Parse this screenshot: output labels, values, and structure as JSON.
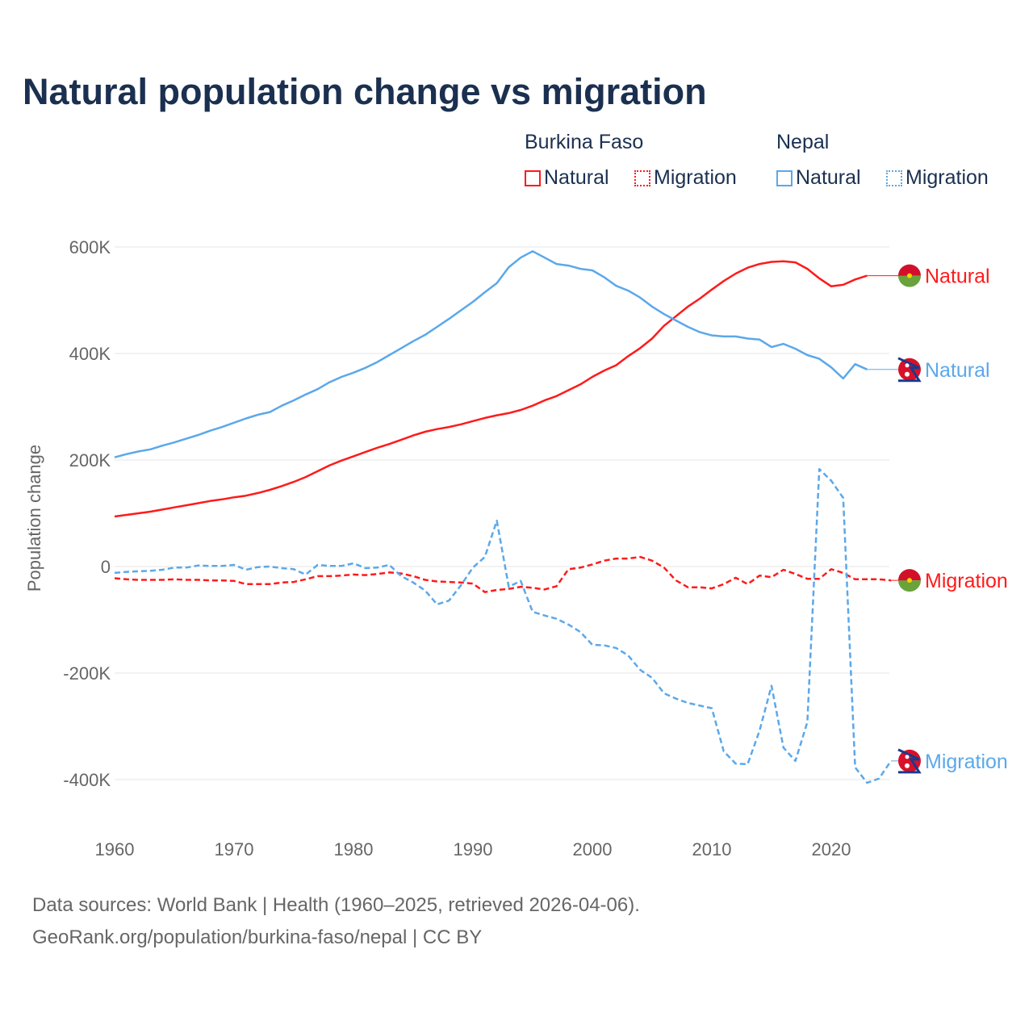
{
  "title": "Natural population change vs migration",
  "legend": {
    "groups": [
      {
        "name": "Burkina Faso",
        "items": [
          {
            "label": "Natural",
            "style": "solid"
          },
          {
            "label": "Migration",
            "style": "dotted"
          }
        ],
        "color": "#ff1a1a"
      },
      {
        "name": "Nepal",
        "items": [
          {
            "label": "Natural",
            "style": "solid"
          },
          {
            "label": "Migration",
            "style": "dotted"
          }
        ],
        "color": "#5ba8ea"
      }
    ]
  },
  "footer": {
    "line1": "Data sources: World Bank | Health (1960–2025, retrieved 2026-04-06).",
    "line2": "GeoRank.org/population/burkina-faso/nepal | CC BY"
  },
  "chart_data": {
    "type": "line",
    "title": "Natural population change vs migration",
    "xlabel": "",
    "ylabel": "Population change",
    "xlim": [
      1960,
      2025
    ],
    "ylim": [
      -500000,
      620000
    ],
    "x_ticks": [
      1960,
      1970,
      1980,
      1990,
      2000,
      2010,
      2020
    ],
    "x_tick_labels": [
      "1960",
      "1970",
      "1980",
      "1990",
      "2000",
      "2010",
      "2020"
    ],
    "y_ticks": [
      600,
      400,
      200,
      0,
      -200,
      -400
    ],
    "y_tick_labels": [
      "600K",
      "400K",
      "200K",
      "0",
      "-200K",
      "-400K"
    ],
    "units": "thousands",
    "grid": true,
    "series": [
      {
        "name": "Burkina Faso Natural",
        "end_label": "Natural",
        "country": "burkina-faso",
        "color": "#ff1a1a",
        "dash": "solid",
        "start_year": 1960,
        "values": [
          94,
          97,
          100,
          103,
          107,
          111,
          115,
          119,
          123,
          126,
          130,
          133,
          138,
          144,
          151,
          159,
          168,
          179,
          190,
          199,
          207,
          215,
          223,
          230,
          238,
          246,
          253,
          258,
          262,
          267,
          273,
          279,
          284,
          288,
          294,
          302,
          312,
          320,
          331,
          342,
          356,
          368,
          378,
          395,
          410,
          428,
          452,
          470,
          488,
          503,
          520,
          536,
          550,
          561,
          568,
          572,
          573,
          571,
          559,
          541,
          526,
          529,
          539,
          546
        ]
      },
      {
        "name": "Burkina Faso Migration",
        "end_label": "Migration",
        "country": "burkina-faso",
        "color": "#ff1a1a",
        "dash": "dashed",
        "start_year": 1960,
        "values": [
          -22,
          -24,
          -25,
          -25,
          -25,
          -24,
          -25,
          -25,
          -26,
          -26,
          -27,
          -33,
          -33,
          -33,
          -30,
          -29,
          -24,
          -18,
          -18,
          -17,
          -15,
          -16,
          -14,
          -11,
          -13,
          -18,
          -25,
          -28,
          -29,
          -30,
          -32,
          -48,
          -44,
          -42,
          -38,
          -40,
          -43,
          -37,
          -5,
          -2,
          4,
          11,
          15,
          15,
          18,
          11,
          -2,
          -26,
          -39,
          -39,
          -41,
          -33,
          -21,
          -33,
          -17,
          -20,
          -6,
          -14,
          -23,
          -23,
          -5,
          -12,
          -24,
          -24,
          -24,
          -26
        ]
      },
      {
        "name": "Nepal Natural",
        "end_label": "Natural",
        "country": "nepal",
        "color": "#5ba8ea",
        "dash": "solid",
        "start_year": 1960,
        "values": [
          205,
          211,
          216,
          220,
          227,
          233,
          240,
          247,
          255,
          262,
          270,
          278,
          285,
          290,
          302,
          312,
          323,
          333,
          346,
          356,
          364,
          373,
          384,
          397,
          410,
          423,
          435,
          450,
          465,
          481,
          497,
          515,
          532,
          562,
          580,
          592,
          580,
          568,
          565,
          559,
          556,
          543,
          527,
          518,
          505,
          488,
          474,
          462,
          450,
          440,
          434,
          432,
          432,
          428,
          426,
          412,
          418,
          409,
          397,
          390,
          374,
          353,
          380,
          370
        ]
      },
      {
        "name": "Nepal Migration",
        "end_label": "Migration",
        "country": "nepal",
        "color": "#5ba8ea",
        "dash": "dashed",
        "start_year": 1960,
        "values": [
          -12,
          -10,
          -9,
          -8,
          -6,
          -2,
          -2,
          2,
          1,
          1,
          3,
          -6,
          -1,
          0,
          -3,
          -5,
          -15,
          3,
          1,
          1,
          6,
          -3,
          -2,
          3,
          -18,
          -30,
          -45,
          -71,
          -64,
          -35,
          -2,
          18,
          86,
          -38,
          -27,
          -85,
          -92,
          -98,
          -109,
          -123,
          -147,
          -148,
          -153,
          -167,
          -194,
          -209,
          -238,
          -248,
          -256,
          -261,
          -266,
          -347,
          -370,
          -371,
          -308,
          -224,
          -340,
          -365,
          -292,
          183,
          161,
          129,
          -377,
          -406,
          -398,
          -365
        ]
      }
    ]
  }
}
